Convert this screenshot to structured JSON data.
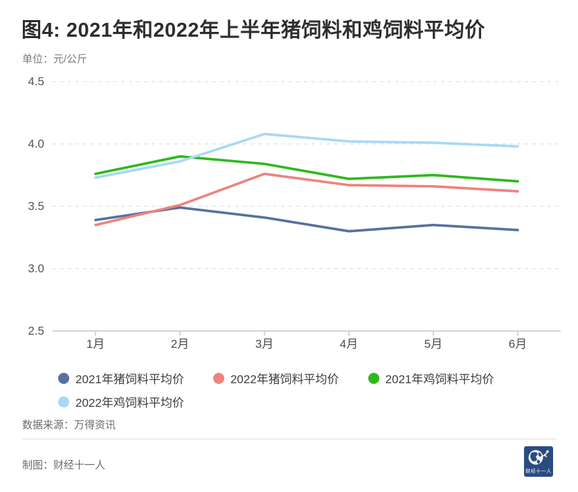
{
  "header": {
    "title": "图4: 2021年和2022年上半年猪饲料和鸡饲料平均价",
    "unit_label": "单位：元/公斤"
  },
  "chart_data": {
    "type": "line",
    "title": "图4: 2021年和2022年上半年猪饲料和鸡饲料平均价",
    "unit_label": "单位：元/公斤",
    "x": [
      "1月",
      "2月",
      "3月",
      "4月",
      "5月",
      "6月"
    ],
    "ylim": [
      2.5,
      4.5
    ],
    "y_ticks": [
      "4.5",
      "4.0",
      "3.5",
      "3.0",
      "2.5"
    ],
    "grid": "horizontal-dashed",
    "legend_position": "bottom-left",
    "series": [
      {
        "name": "2021年猪饲料平均价",
        "color": "#56719f",
        "values": [
          3.39,
          3.49,
          3.41,
          3.3,
          3.35,
          3.31
        ]
      },
      {
        "name": "2022年猪饲料平均价",
        "color": "#ee827e",
        "values": [
          3.35,
          3.51,
          3.76,
          3.67,
          3.66,
          3.62
        ]
      },
      {
        "name": "2021年鸡饲料平均价",
        "color": "#2eb81e",
        "values": [
          3.76,
          3.9,
          3.84,
          3.72,
          3.75,
          3.7
        ]
      },
      {
        "name": "2022年鸡饲料平均价",
        "color": "#a8d9f4",
        "values": [
          3.73,
          3.86,
          4.08,
          4.02,
          4.01,
          3.98
        ]
      }
    ],
    "colors": {
      "gridline": "#e2e2e2",
      "axis": "#c9c9c9",
      "tick_label": "#555555"
    }
  },
  "footer": {
    "source": "数据来源：万得资讯",
    "credit": "制图：财经十一人",
    "logo_text": "财经十一人",
    "logo_bg": "#2b4c80"
  }
}
